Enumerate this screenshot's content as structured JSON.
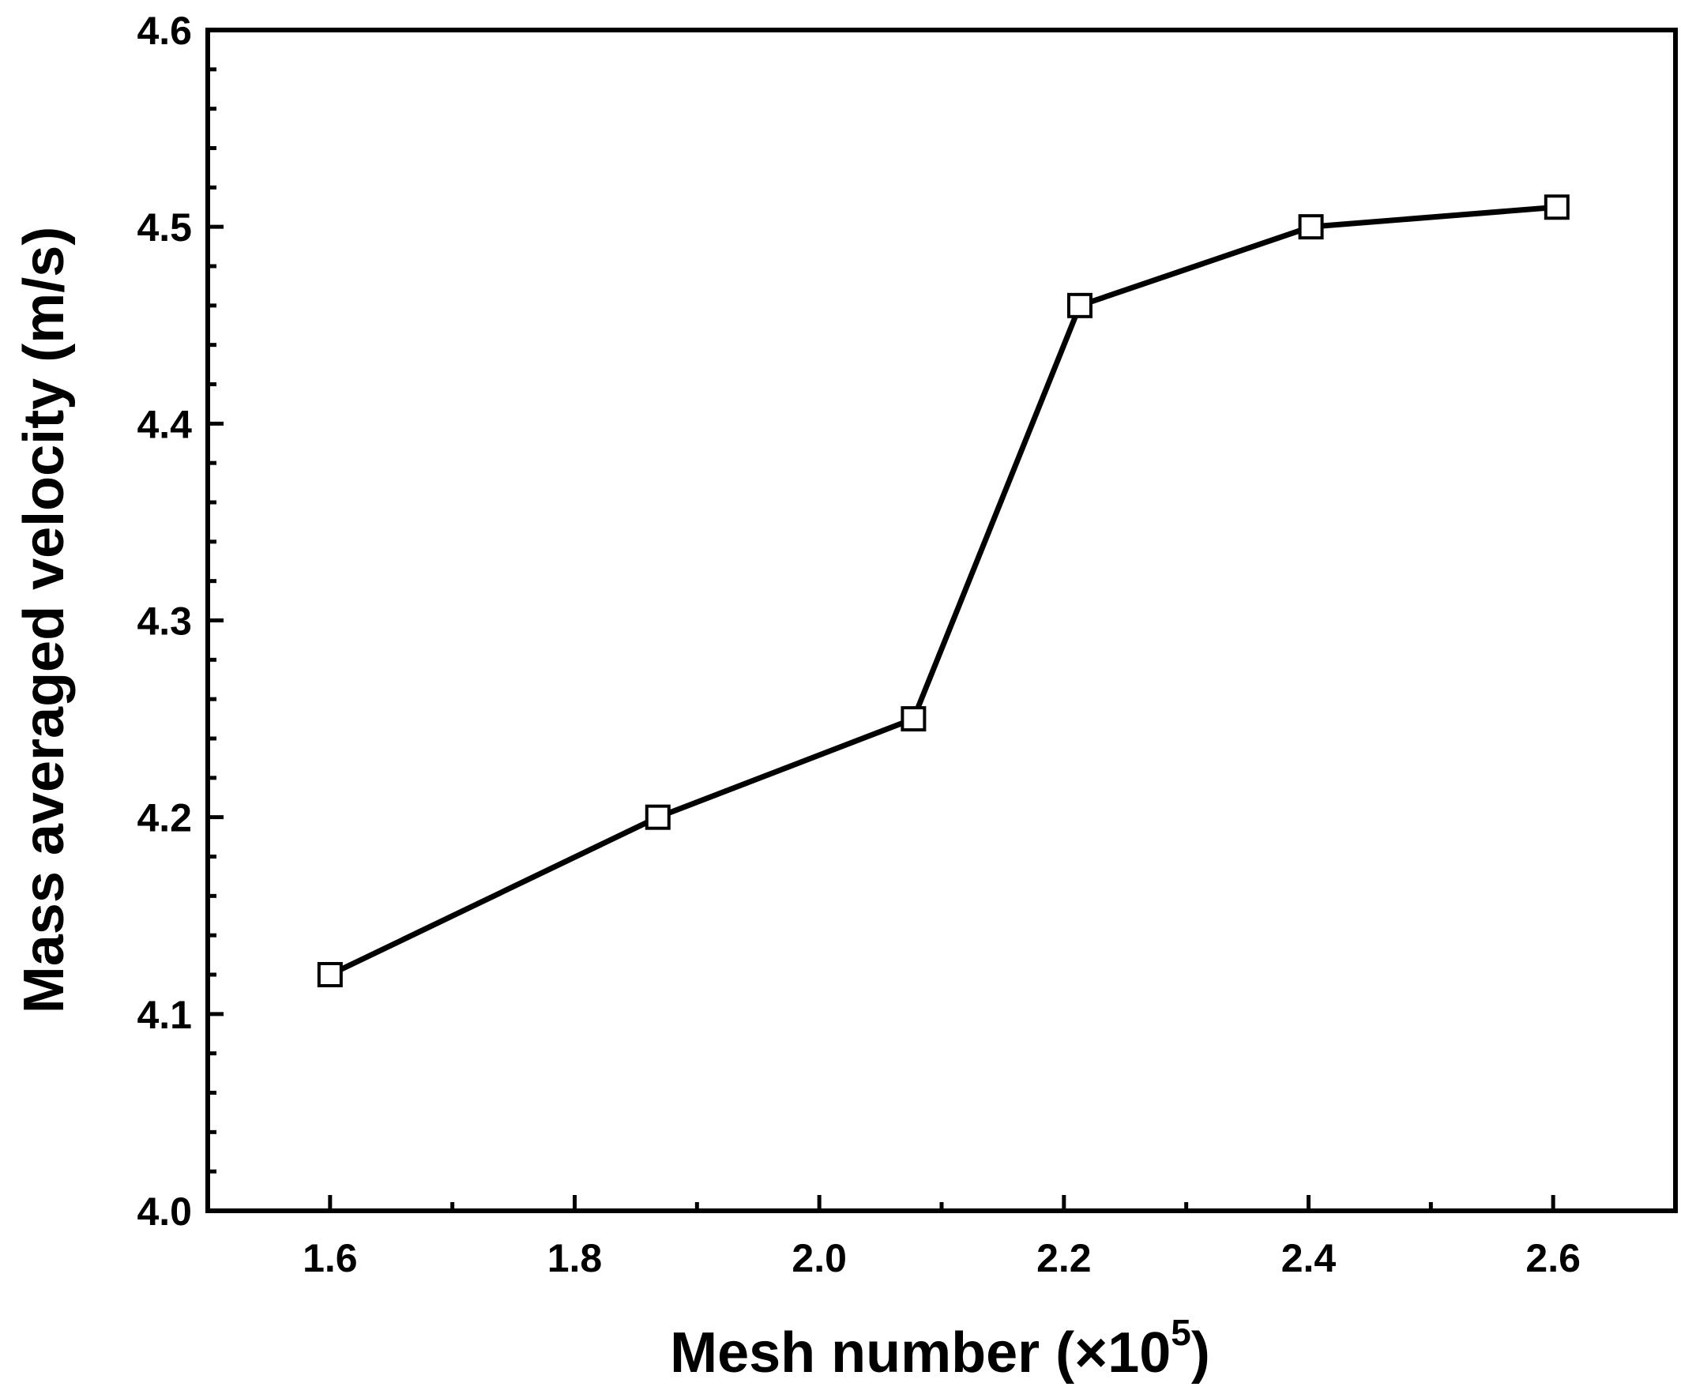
{
  "chart_data": {
    "type": "line",
    "title": "",
    "xlabel": "Mesh number (×10",
    "xlabel_superscript": "5",
    "xlabel_close": ")",
    "ylabel": "Mass averaged velocity (m/s)",
    "xlim": [
      1.5,
      2.7
    ],
    "ylim": [
      4.0,
      4.6
    ],
    "x_ticks": [
      1.6,
      1.8,
      2.0,
      2.2,
      2.4,
      2.6
    ],
    "x_tick_labels": [
      "1.6",
      "1.8",
      "2.0",
      "2.2",
      "2.4",
      "2.6"
    ],
    "y_ticks": [
      4.0,
      4.1,
      4.2,
      4.3,
      4.4,
      4.5,
      4.6
    ],
    "y_tick_labels": [
      "4.0",
      "4.1",
      "4.2",
      "4.3",
      "4.4",
      "4.5",
      "4.6"
    ],
    "grid": false,
    "legend": "none",
    "marker": "open-square",
    "line_color": "#000000",
    "series": [
      {
        "x": [
          1.6,
          1.868,
          2.077,
          2.213,
          2.402,
          2.603
        ],
        "y": [
          4.12,
          4.2,
          4.25,
          4.46,
          4.5,
          4.51
        ]
      }
    ]
  }
}
